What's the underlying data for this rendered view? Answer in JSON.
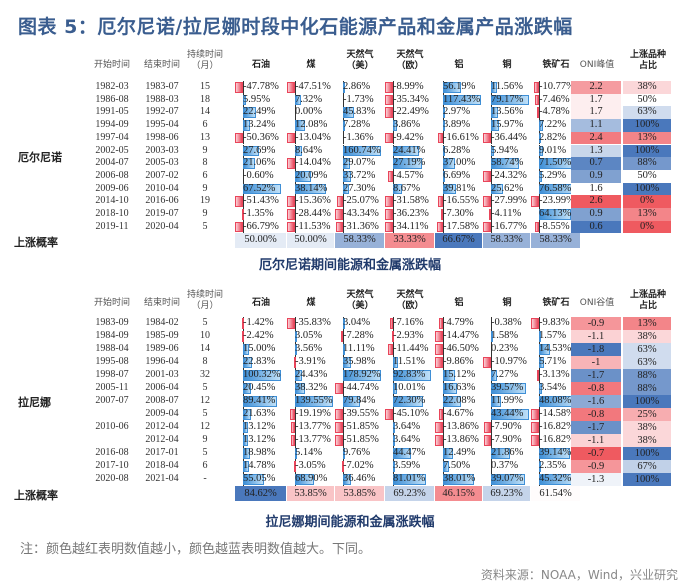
{
  "title": "图表 5：厄尔尼诺/拉尼娜时段中化石能源产品和金属产品涨跌幅",
  "colors": {
    "negative": "#e9455a",
    "positive": "#3f8fd6",
    "heat_red": "#ef5a60",
    "heat_blue": "#4a78bc"
  },
  "el_nino": {
    "group_label": "厄尔尼诺",
    "prob_label": "上涨概率",
    "caption": "厄尔尼诺期间能源和金属涨跌幅",
    "headers": [
      "开始时间",
      "结束时间",
      "持续时间\n（月）",
      "石油",
      "煤",
      "天然气\n（美）",
      "天然气\n（欧）",
      "铝",
      "铜",
      "铁矿石",
      "ONI峰值",
      "上涨品种\n占比"
    ],
    "rows": [
      [
        "1982-03",
        "1983-07",
        "15",
        "-47.78%",
        "-47.51%",
        "2.86%",
        "-8.99%",
        "56.19%",
        "11.56%",
        "-10.77%",
        "2.2",
        "38%"
      ],
      [
        "1986-08",
        "1988-03",
        "18",
        "5.95%",
        "7.32%",
        "-1.73%",
        "-35.34%",
        "117.43%",
        "79.17%",
        "-7.46%",
        "1.7",
        "50%"
      ],
      [
        "1991-05",
        "1992-07",
        "14",
        "22.49%",
        "0.00%",
        "45.83%",
        "-22.49%",
        "2.97%",
        "13.56%",
        "-4.78%",
        "1.7",
        "63%"
      ],
      [
        "1994-09",
        "1995-04",
        "6",
        "13.24%",
        "12.08%",
        "7.28%",
        "3.86%",
        "3.89%",
        "15.97%",
        "7.22%",
        "1.1",
        "100%"
      ],
      [
        "1997-04",
        "1998-06",
        "13",
        "-50.36%",
        "-13.04%",
        "-1.36%",
        "-9.42%",
        "-16.61%",
        "-36.44%",
        "2.82%",
        "2.4",
        "13%"
      ],
      [
        "2002-05",
        "2003-03",
        "9",
        "27.69%",
        "8.64%",
        "160.74%",
        "24.41%",
        "6.28%",
        "5.94%",
        "9.01%",
        "1.3",
        "100%"
      ],
      [
        "2004-07",
        "2005-03",
        "8",
        "21.06%",
        "-14.04%",
        "29.07%",
        "27.19%",
        "37.00%",
        "58.74%",
        "71.50%",
        "0.7",
        "88%"
      ],
      [
        "2006-08",
        "2007-02",
        "6",
        "-0.60%",
        "20.09%",
        "33.72%",
        "-4.57%",
        "6.69%",
        "-24.32%",
        "5.29%",
        "0.9",
        "50%"
      ],
      [
        "2009-06",
        "2010-04",
        "9",
        "67.52%",
        "38.14%",
        "27.30%",
        "8.67%",
        "39.81%",
        "25.62%",
        "76.58%",
        "1.6",
        "100%"
      ],
      [
        "2014-10",
        "2016-06",
        "19",
        "-51.43%",
        "-15.36%",
        "-25.07%",
        "-31.58%",
        "-16.55%",
        "-27.99%",
        "-23.99%",
        "2.6",
        "0%"
      ],
      [
        "2018-10",
        "2019-07",
        "9",
        "-1.35%",
        "-28.44%",
        "-43.34%",
        "-36.23%",
        "-7.30%",
        "-4.11%",
        "64.13%",
        "0.9",
        "13%"
      ],
      [
        "2019-11",
        "2020-04",
        "5",
        "-66.79%",
        "-11.53%",
        "-31.36%",
        "-34.11%",
        "-17.58%",
        "-16.77%",
        "-8.55%",
        "0.6",
        "0%"
      ]
    ],
    "prob": [
      "50.00%",
      "50.00%",
      "58.33%",
      "33.33%",
      "66.67%",
      "58.33%",
      "58.33%"
    ]
  },
  "la_nina": {
    "group_label": "拉尼娜",
    "prob_label": "上涨概率",
    "caption": "拉尼娜期间能源和金属涨跌幅",
    "headers": [
      "开始时间",
      "结束时间",
      "持续时间\n（月）",
      "石油",
      "煤",
      "天然气\n（美）",
      "天然气\n（欧）",
      "铝",
      "铜",
      "铁矿石",
      "ONI谷值",
      "上涨品种\n占比"
    ],
    "rows": [
      [
        "1983-09",
        "1984-02",
        "5",
        "-1.42%",
        "-35.83%",
        "3.04%",
        "-7.16%",
        "-4.79%",
        "-0.38%",
        "-9.83%",
        "-0.9",
        "13%"
      ],
      [
        "1984-09",
        "1985-09",
        "10",
        "-2.42%",
        "3.05%",
        "-7.28%",
        "-2.93%",
        "-14.47%",
        "1.58%",
        "1.57%",
        "-1.1",
        "38%"
      ],
      [
        "1988-04",
        "1989-06",
        "14",
        "15.00%",
        "3.56%",
        "11.11%",
        "-11.44%",
        "-46.50%",
        "0.23%",
        "14.53%",
        "-1.8",
        "63%"
      ],
      [
        "1995-08",
        "1996-04",
        "8",
        "22.83%",
        "-3.91%",
        "35.98%",
        "11.51%",
        "-9.86%",
        "-10.97%",
        "5.71%",
        "-1",
        "63%"
      ],
      [
        "1998-07",
        "2001-03",
        "32",
        "100.32%",
        "24.43%",
        "178.92%",
        "92.83%",
        "15.12%",
        "7.27%",
        "-3.13%",
        "-1.7",
        "88%"
      ],
      [
        "2005-11",
        "2006-04",
        "5",
        "20.45%",
        "38.32%",
        "-44.74%",
        "10.01%",
        "16.63%",
        "39.57%",
        "3.54%",
        "-0.8",
        "88%"
      ],
      [
        "2007-07",
        "2008-07",
        "12",
        "89.41%",
        "139.55%",
        "79.84%",
        "72.30%",
        "22.08%",
        "11.99%",
        "48.08%",
        "-1.6",
        "100%"
      ],
      [
        "",
        "2009-04",
        "5",
        "21.63%",
        "-19.19%",
        "-39.55%",
        "-45.10%",
        "-4.67%",
        "43.44%",
        "-14.58%",
        "-0.8",
        "25%"
      ],
      [
        "2010-06",
        "2012-04",
        "12",
        "13.12%",
        "-13.77%",
        "-51.85%",
        "3.64%",
        "-13.86%",
        "-7.90%",
        "-16.82%",
        "-1.7",
        "38%"
      ],
      [
        "",
        "2012-04",
        "9",
        "13.12%",
        "-13.77%",
        "-51.85%",
        "3.64%",
        "-13.86%",
        "-7.90%",
        "-16.82%",
        "-1.1",
        "38%"
      ],
      [
        "2016-08",
        "2017-01",
        "5",
        "18.98%",
        "5.14%",
        "9.76%",
        "44.47%",
        "12.49%",
        "21.86%",
        "39.14%",
        "-0.7",
        "100%"
      ],
      [
        "2017-10",
        "2018-04",
        "6",
        "14.78%",
        "-3.05%",
        "-7.02%",
        "3.59%",
        "7.50%",
        "0.37%",
        "2.35%",
        "-0.9",
        "67%"
      ],
      [
        "2020-08",
        "2021-04",
        "-",
        "55.05%",
        "68.90%",
        "36.46%",
        "81.01%",
        "38.01%",
        "39.07%",
        "45.32%",
        "-1.3",
        "100%"
      ]
    ],
    "prob": [
      "84.62%",
      "53.85%",
      "53.85%",
      "69.23%",
      "46.15%",
      "69.23%",
      "61.54%"
    ]
  },
  "note": "注：颜色越红表明数值越小，颜色越蓝表明数值越大。下同。",
  "source": "资料来源：NOAA，Wind，兴业研究"
}
